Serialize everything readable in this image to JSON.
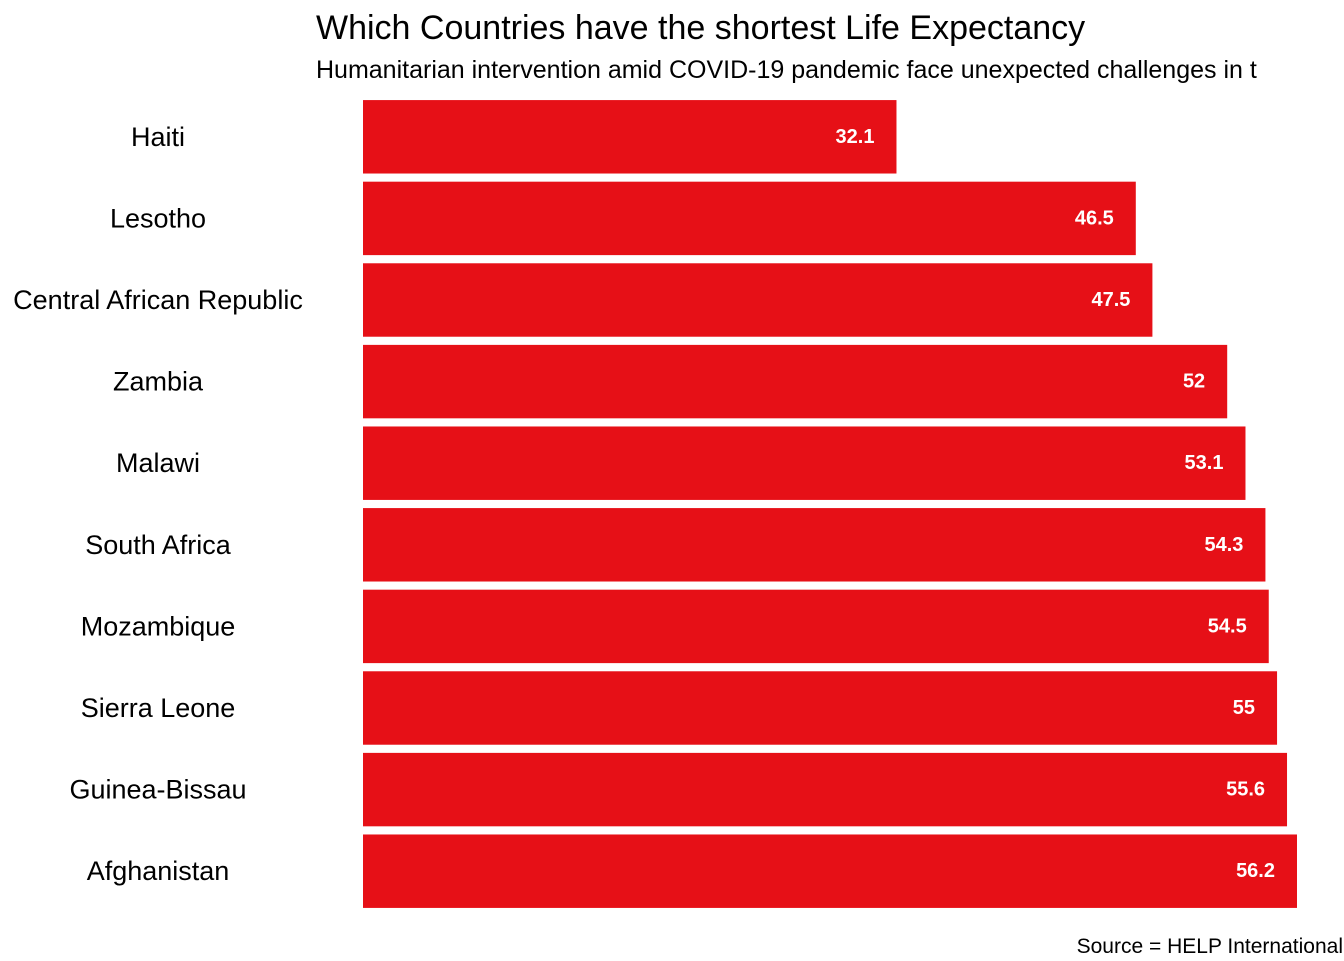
{
  "chart_data": {
    "type": "bar",
    "orientation": "horizontal",
    "title": "Which Countries have the shortest Life Expectancy",
    "subtitle": "Humanitarian intervention amid COVID-19 pandemic face unexpected challenges in t",
    "caption": "Source = HELP International",
    "categories": [
      "Haiti",
      "Lesotho",
      "Central African Republic",
      "Zambia",
      "Malawi",
      "South Africa",
      "Mozambique",
      "Sierra Leone",
      "Guinea-Bissau",
      "Afghanistan"
    ],
    "values": [
      32.1,
      46.5,
      47.5,
      52,
      53.1,
      54.3,
      54.5,
      55,
      55.6,
      56.2
    ],
    "labels": [
      "32.1",
      "46.5",
      "47.5",
      "52",
      "53.1",
      "54.3",
      "54.5",
      "55",
      "55.6",
      "56.2"
    ],
    "xlim": [
      0,
      56.2
    ],
    "bar_color": "#e61017",
    "label_color": "#ffffff",
    "grid": false,
    "legend": "none"
  }
}
